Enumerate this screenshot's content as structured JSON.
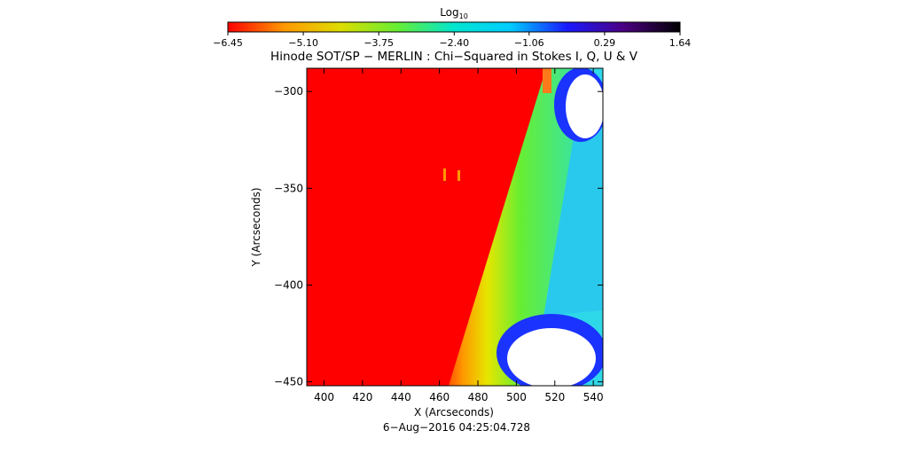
{
  "chart_data": {
    "type": "heatmap",
    "title": "Hinode SOT/SP − MERLIN : Chi−Squared in Stokes I, Q, U & V",
    "xlabel": "X (Arcseconds)",
    "ylabel": "Y (Arcseconds)",
    "timestamp": "6−Aug−2016 04:25:04.728",
    "xlim": [
      391,
      545
    ],
    "ylim": [
      -452,
      -288
    ],
    "x_ticks": [
      400,
      420,
      440,
      460,
      480,
      500,
      520,
      540
    ],
    "y_ticks": [
      -300,
      -350,
      -400,
      -450
    ],
    "y_tick_labels": [
      "−300",
      "−350",
      "−400",
      "−450"
    ],
    "colorbar": {
      "label_main": "Log",
      "label_sub": "10",
      "min": -6.45,
      "max": 1.64,
      "tick_labels": [
        "−6.45",
        "−5.10",
        "−3.75",
        "−2.40",
        "−1.06",
        "0.29",
        "1.64"
      ],
      "tick_values": [
        -6.45,
        -5.1,
        -3.75,
        -2.4,
        -1.06,
        0.29,
        1.64
      ],
      "stops": [
        "#ff0000",
        "#ff9900",
        "#dddd00",
        "#66ee33",
        "#00e6d0",
        "#00ccff",
        "#1a1aff",
        "#4b0082",
        "#000000"
      ]
    },
    "regions": {
      "left_photosphere_log10": -6.45,
      "limb_band_center_log10": -3.75,
      "off_limb_log10": -1.3,
      "bright_features": "white (saturated)"
    }
  }
}
